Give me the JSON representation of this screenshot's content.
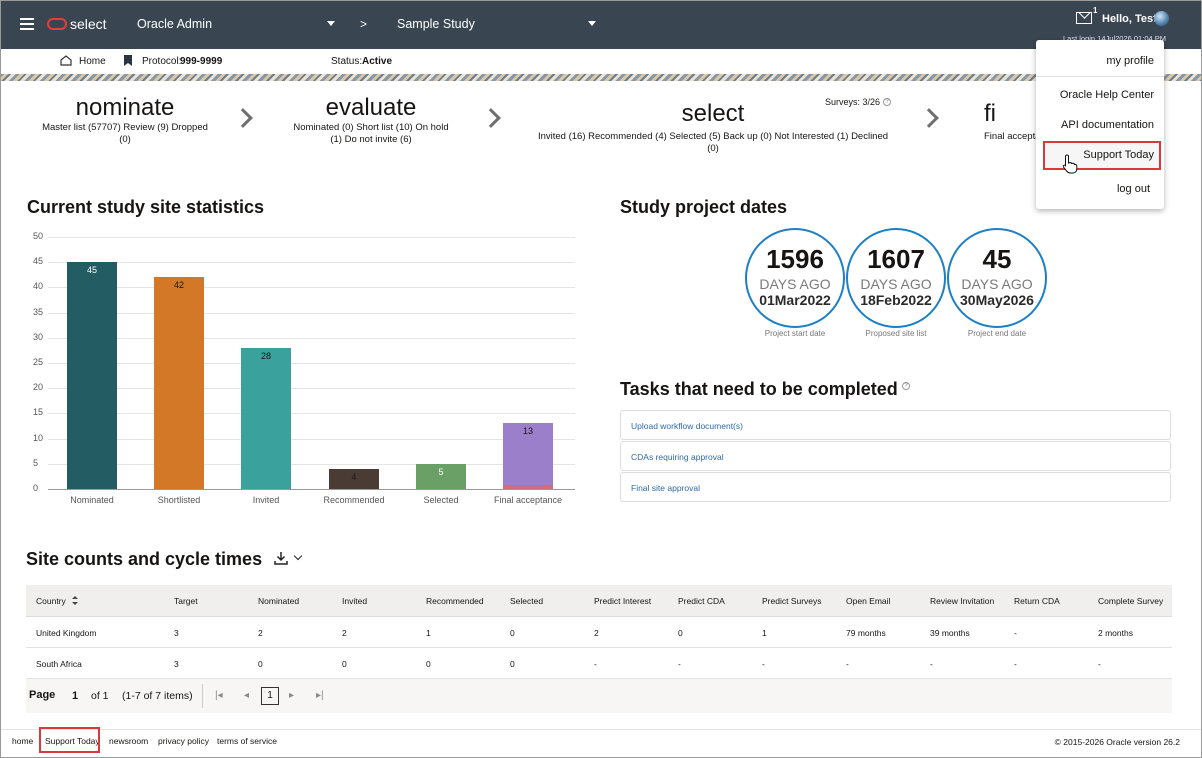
{
  "header": {
    "brand": "select",
    "org": "Oracle Admin",
    "sep": ">",
    "study": "Sample Study",
    "mail_count": "1",
    "greeting": "Hello, Test",
    "last_login": "Last login 14Jul2026 01:04 PM"
  },
  "subbar": {
    "home": "Home",
    "protocol_label": "Protocol:",
    "protocol": "999-9999",
    "status_label": "Status:",
    "status": "Active"
  },
  "stages": [
    {
      "title": "nominate",
      "sub": "Master list (57707)  Review (9)  Dropped (0)"
    },
    {
      "title": "evaluate",
      "sub": "Nominated (0)  Short list (10)  On hold (1)  Do not invite (6)"
    },
    {
      "title": "select",
      "sub": "Invited (16)  Recommended (4)  Selected (5)  Back up (0)  Not Interested (1)  Declined (0)",
      "surveys": "Surveys: 3/26"
    },
    {
      "title": "fi",
      "sub": "Final accepta"
    }
  ],
  "stats_title": "Current study site statistics",
  "chart_data": {
    "type": "bar",
    "title": "Current study site statistics",
    "categories": [
      "Nominated",
      "Shortlisted",
      "Invited",
      "Recommended",
      "Selected",
      "Final acceptance"
    ],
    "values": [
      45,
      42,
      28,
      4,
      5,
      13
    ],
    "ylim": [
      0,
      50
    ],
    "yticks": [
      "50",
      "45",
      "40",
      "35",
      "30",
      "25",
      "20",
      "15",
      "10",
      "5",
      "0"
    ],
    "colors": [
      "#235c62",
      "#d27826",
      "#3aa19c",
      "#4a3c35",
      "#6a9f66",
      "#9b7fcb"
    ],
    "final_acceptance_segment_colors": [
      "#9b7fcb",
      "#cf6b7d"
    ]
  },
  "dates_title": "Study project dates",
  "dates": [
    {
      "num": "1596",
      "label": "DAYS AGO",
      "date": "01Mar2022",
      "caption": "Project start date"
    },
    {
      "num": "1607",
      "label": "DAYS AGO",
      "date": "18Feb2022",
      "caption": "Proposed site list"
    },
    {
      "num": "45",
      "label": "DAYS AGO",
      "date": "30May2026",
      "caption": "Project end date"
    }
  ],
  "tasks_title": "Tasks that need to be completed",
  "tasks": [
    "Upload workflow document(s)",
    "CDAs requiring approval",
    "Final site approval"
  ],
  "table_title": "Site counts and cycle times",
  "table": {
    "headers": [
      "Country",
      "Target",
      "Nominated",
      "Invited",
      "Recommended",
      "Selected",
      "Predict Interest",
      "Predict CDA",
      "Predict Surveys",
      "Open Email",
      "Review Invitation",
      "Return CDA",
      "Complete Survey"
    ],
    "rows": [
      [
        "United Kingdom",
        "3",
        "2",
        "2",
        "1",
        "0",
        "2",
        "0",
        "1",
        "79 months",
        "39 months",
        "-",
        "2 months"
      ],
      [
        "South Africa",
        "3",
        "0",
        "0",
        "0",
        "0",
        "-",
        "-",
        "-",
        "-",
        "-",
        "-",
        "-"
      ]
    ]
  },
  "pager": {
    "label": "Page",
    "current": "1",
    "of": "of 1",
    "items": "(1-7 of 7 items)",
    "page_btn": "1"
  },
  "menu": [
    "my profile",
    "Oracle Help Center",
    "API documentation",
    "Support Today",
    "log out"
  ],
  "footer": {
    "links": [
      "home",
      "Support Today",
      "newsroom",
      "privacy policy",
      "terms of service"
    ],
    "copyright": "© 2015-2026 Oracle version 26.2"
  }
}
